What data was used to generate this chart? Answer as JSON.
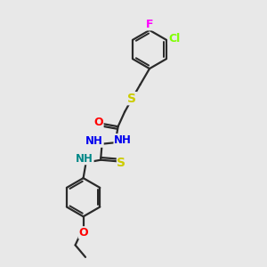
{
  "bg_color": "#e8e8e8",
  "bond_color": "#2a2a2a",
  "bond_width": 1.6,
  "atom_colors": {
    "F": "#ff00ff",
    "Cl": "#7fff00",
    "S": "#cccc00",
    "O": "#ff0000",
    "N_blue": "#0000ee",
    "NH_teal": "#008888",
    "N_teal": "#008888"
  },
  "figsize": [
    3.0,
    3.0
  ],
  "dpi": 100
}
